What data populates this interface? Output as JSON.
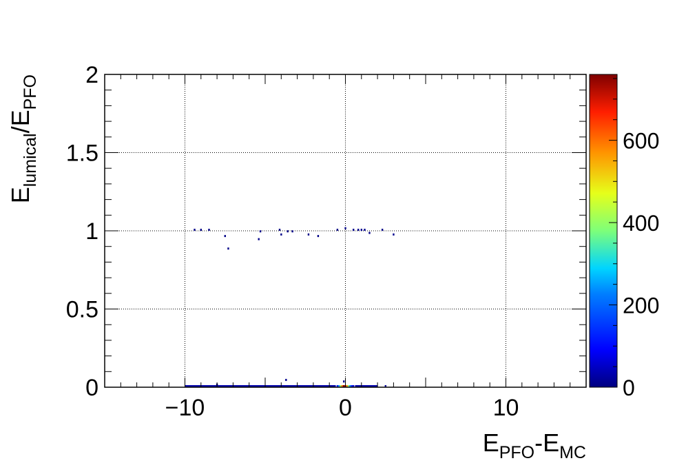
{
  "chart_data": {
    "type": "heatmap",
    "title": "",
    "xlabel": {
      "base1": "E",
      "sub1": "PFO",
      "mid": "-E",
      "sub2": "MC"
    },
    "ylabel": {
      "base1": "E",
      "sub1": "lumical",
      "mid": "/E",
      "sub2": "PFO"
    },
    "xlim": [
      -15,
      15
    ],
    "ylim": [
      0,
      2
    ],
    "zlim": [
      0,
      760
    ],
    "grid": true,
    "colormap": "jet",
    "x_ticks": [
      {
        "value": -10,
        "label": "−10"
      },
      {
        "value": 0,
        "label": "0"
      },
      {
        "value": 10,
        "label": "10"
      }
    ],
    "y_ticks": [
      {
        "value": 0,
        "label": "0"
      },
      {
        "value": 0.5,
        "label": "0.5"
      },
      {
        "value": 1,
        "label": "1"
      },
      {
        "value": 1.5,
        "label": "1.5"
      },
      {
        "value": 2,
        "label": "2"
      }
    ],
    "z_ticks": [
      {
        "value": 0,
        "label": "0"
      },
      {
        "value": 200,
        "label": "200"
      },
      {
        "value": 400,
        "label": "400"
      },
      {
        "value": 600,
        "label": "600"
      }
    ],
    "bands": [
      {
        "x0": -10,
        "x1": -0.6,
        "y": 0.0,
        "z": 30
      },
      {
        "x0": 0.6,
        "x1": 2.0,
        "y": 0.0,
        "z": 30
      }
    ],
    "cells": [
      {
        "x": -0.5,
        "y": 0.0,
        "z": 110
      },
      {
        "x": -0.4,
        "y": 0.0,
        "z": 250
      },
      {
        "x": -0.3,
        "y": 0.0,
        "z": 420
      },
      {
        "x": -0.2,
        "y": 0.0,
        "z": 600
      },
      {
        "x": -0.1,
        "y": 0.0,
        "z": 760
      },
      {
        "x": 0.0,
        "y": 0.0,
        "z": 720
      },
      {
        "x": 0.1,
        "y": 0.0,
        "z": 560
      },
      {
        "x": 0.2,
        "y": 0.0,
        "z": 380
      },
      {
        "x": 0.3,
        "y": 0.0,
        "z": 220
      },
      {
        "x": 0.4,
        "y": 0.0,
        "z": 120
      },
      {
        "x": 0.5,
        "y": 0.0,
        "z": 60
      },
      {
        "x": 2.5,
        "y": 0.0,
        "z": 15
      },
      {
        "x": -3.7,
        "y": 0.04,
        "z": 10
      },
      {
        "x": -8.0,
        "y": 0.01,
        "z": 8
      },
      {
        "x": -0.1,
        "y": 0.03,
        "z": 8
      },
      {
        "x": -9.4,
        "y": 1.0,
        "z": 8
      },
      {
        "x": -9.0,
        "y": 1.0,
        "z": 6
      },
      {
        "x": -8.5,
        "y": 1.0,
        "z": 6
      },
      {
        "x": -7.5,
        "y": 0.96,
        "z": 6
      },
      {
        "x": -7.3,
        "y": 0.88,
        "z": 5
      },
      {
        "x": -5.4,
        "y": 0.94,
        "z": 8
      },
      {
        "x": -5.3,
        "y": 0.99,
        "z": 6
      },
      {
        "x": -4.1,
        "y": 1.0,
        "z": 6
      },
      {
        "x": -4.0,
        "y": 0.97,
        "z": 6
      },
      {
        "x": -3.6,
        "y": 0.99,
        "z": 6
      },
      {
        "x": -3.3,
        "y": 0.99,
        "z": 5
      },
      {
        "x": -2.3,
        "y": 0.97,
        "z": 5
      },
      {
        "x": -1.7,
        "y": 0.96,
        "z": 5
      },
      {
        "x": -0.5,
        "y": 1.0,
        "z": 6
      },
      {
        "x": 0.0,
        "y": 1.01,
        "z": 6
      },
      {
        "x": 0.5,
        "y": 1.0,
        "z": 10
      },
      {
        "x": 0.8,
        "y": 1.0,
        "z": 12
      },
      {
        "x": 1.0,
        "y": 1.0,
        "z": 12
      },
      {
        "x": 1.2,
        "y": 1.0,
        "z": 12
      },
      {
        "x": 1.5,
        "y": 0.98,
        "z": 6
      },
      {
        "x": 2.3,
        "y": 1.0,
        "z": 6
      },
      {
        "x": 3.0,
        "y": 0.97,
        "z": 10
      }
    ]
  }
}
